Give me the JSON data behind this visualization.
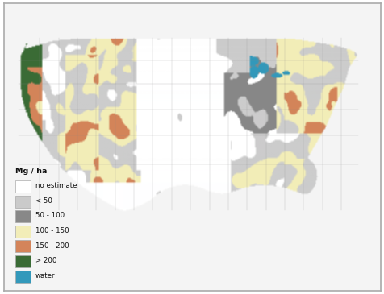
{
  "legend_title": "Mg / ha",
  "legend_items": [
    {
      "label": "no estimate",
      "color": "#FFFFFF",
      "edgecolor": "#AAAAAA"
    },
    {
      "label": "< 50",
      "color": "#CACACA",
      "edgecolor": "#AAAAAA"
    },
    {
      "label": "50 - 100",
      "color": "#888888",
      "edgecolor": "#AAAAAA"
    },
    {
      "label": "100 - 150",
      "color": "#F2EDB8",
      "edgecolor": "#AAAAAA"
    },
    {
      "label": "150 - 200",
      "color": "#D4845A",
      "edgecolor": "#AAAAAA"
    },
    {
      "label": "> 200",
      "color": "#3A6B35",
      "edgecolor": "#AAAAAA"
    },
    {
      "label": "water",
      "color": "#3399BB",
      "edgecolor": "#AAAAAA"
    }
  ],
  "background_color": "#FFFFFF",
  "fig_width": 4.77,
  "fig_height": 3.65,
  "dpi": 100,
  "map_colors": {
    "no_estimate": [
      1.0,
      1.0,
      1.0
    ],
    "lt50": [
      0.8,
      0.8,
      0.8
    ],
    "c50_100": [
      0.53,
      0.53,
      0.53
    ],
    "c100_150": [
      0.95,
      0.93,
      0.72
    ],
    "c150_200": [
      0.83,
      0.52,
      0.35
    ],
    "gt200": [
      0.23,
      0.42,
      0.21
    ],
    "water": [
      0.2,
      0.6,
      0.73
    ],
    "outside": [
      0.96,
      0.96,
      0.96
    ]
  }
}
